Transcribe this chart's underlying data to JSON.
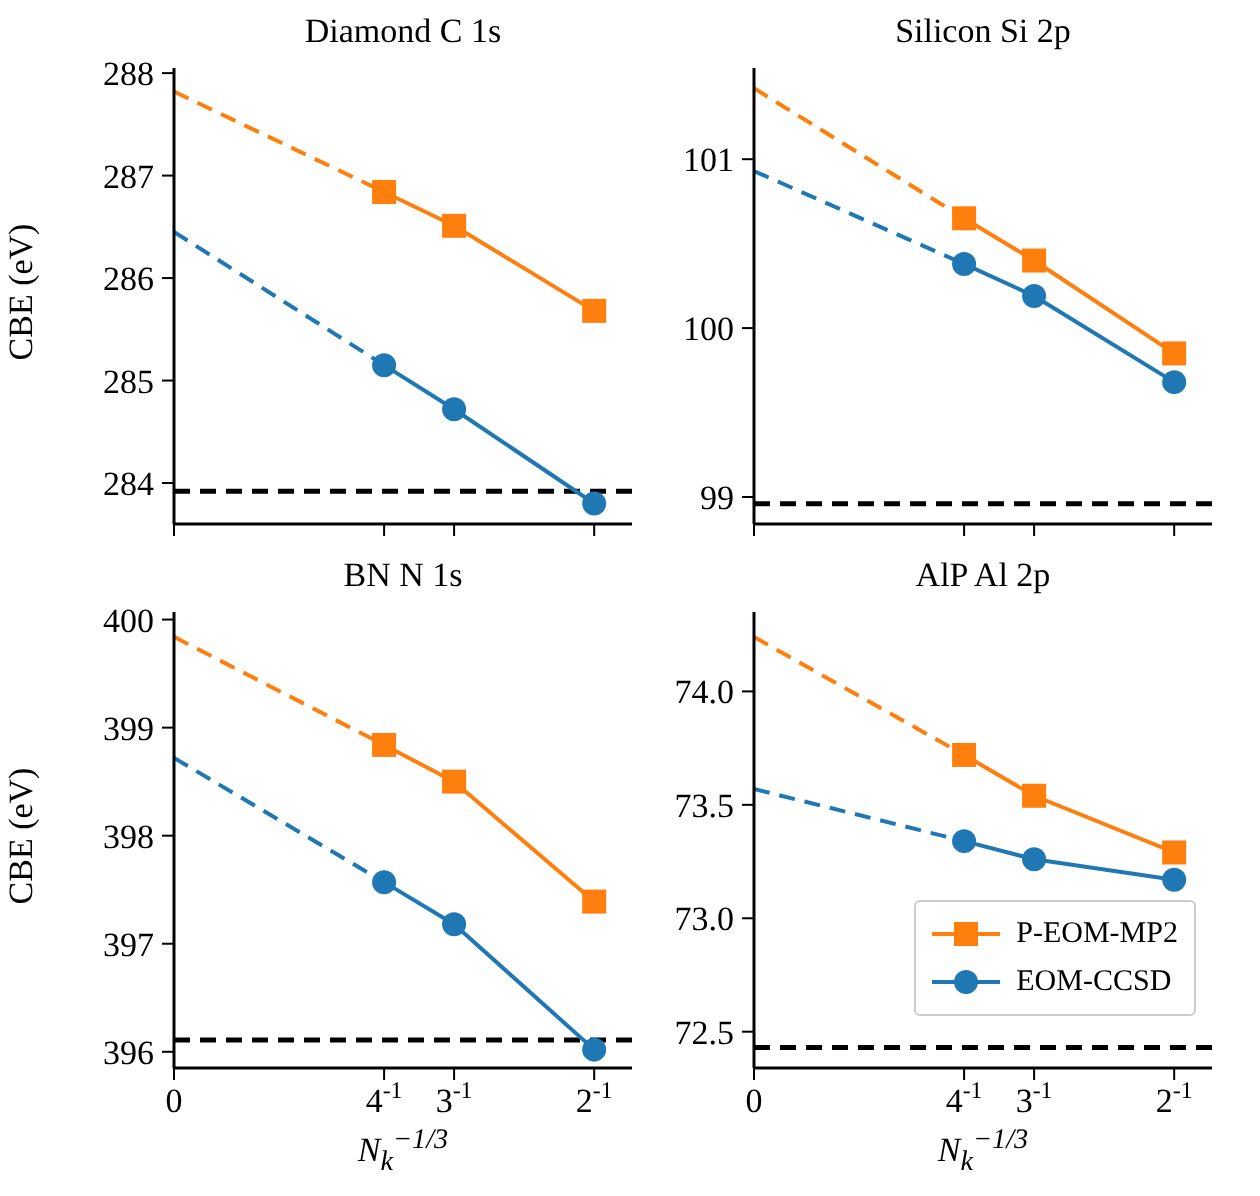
{
  "chart_data": [
    {
      "type": "line",
      "title": "Diamond C 1s",
      "ylabel": "CBE (eV)",
      "xlim": [
        0,
        0.545
      ],
      "xticks": [
        {
          "value": 0,
          "label": null
        },
        {
          "value": 0.25,
          "label": null
        },
        {
          "value": 0.3333,
          "label": null
        },
        {
          "value": 0.5,
          "label": null
        }
      ],
      "ylim": [
        283.6,
        288.05
      ],
      "yticks": [
        284,
        285,
        286,
        287,
        288
      ],
      "tick_labels": "y",
      "grid": false,
      "legend": false,
      "series": [
        {
          "color": "#ff7f0e",
          "x": [
            0,
            0.25
          ],
          "values": [
            287.82,
            286.84
          ],
          "line_style": "dashed"
        },
        {
          "color": "#1f77b4",
          "x": [
            0,
            0.25
          ],
          "values": [
            286.45,
            285.15
          ],
          "line_style": "dashed"
        },
        {
          "color": "#ff7f0e",
          "x": [
            0.25,
            0.3333,
            0.5
          ],
          "values": [
            286.84,
            286.51,
            285.68
          ],
          "marker": "square",
          "line_style": "solid"
        },
        {
          "color": "#1f77b4",
          "x": [
            0.25,
            0.3333,
            0.5
          ],
          "values": [
            285.15,
            284.72,
            283.8
          ],
          "marker": "circle",
          "line_style": "solid"
        }
      ],
      "ref_lines": [
        {
          "axis": "y",
          "value": 283.92,
          "color": "#000000",
          "line_style": "dashed"
        }
      ]
    },
    {
      "type": "line",
      "title": "Silicon Si 2p",
      "xlim": [
        0,
        0.545
      ],
      "xticks": [
        {
          "value": 0,
          "label": null
        },
        {
          "value": 0.25,
          "label": null
        },
        {
          "value": 0.3333,
          "label": null
        },
        {
          "value": 0.5,
          "label": null
        }
      ],
      "ylim": [
        98.84,
        101.54
      ],
      "yticks": [
        99,
        100,
        101
      ],
      "tick_labels": "y",
      "grid": false,
      "legend": false,
      "series": [
        {
          "color": "#ff7f0e",
          "x": [
            0,
            0.25
          ],
          "values": [
            101.42,
            100.65
          ],
          "line_style": "dashed"
        },
        {
          "color": "#1f77b4",
          "x": [
            0,
            0.25
          ],
          "values": [
            100.93,
            100.38
          ],
          "line_style": "dashed"
        },
        {
          "color": "#ff7f0e",
          "x": [
            0.25,
            0.3333,
            0.5
          ],
          "values": [
            100.65,
            100.4,
            99.85
          ],
          "marker": "square",
          "line_style": "solid"
        },
        {
          "color": "#1f77b4",
          "x": [
            0.25,
            0.3333,
            0.5
          ],
          "values": [
            100.38,
            100.19,
            99.68
          ],
          "marker": "circle",
          "line_style": "solid"
        }
      ],
      "ref_lines": [
        {
          "axis": "y",
          "value": 98.96,
          "color": "#000000",
          "line_style": "dashed"
        }
      ]
    },
    {
      "type": "line",
      "title": "BN N 1s",
      "ylabel": "CBE (eV)",
      "xlabel": "N$_{k}$$^{−1/3}$",
      "xlim": [
        0,
        0.545
      ],
      "xticks": [
        0,
        {
          "value": 0.25,
          "label": "4$^{-1}$"
        },
        {
          "value": 0.3333,
          "label": "3$^{-1}$"
        },
        {
          "value": 0.5,
          "label": "2$^{-1}$"
        }
      ],
      "ylim": [
        395.85,
        400.07
      ],
      "yticks": [
        396,
        397,
        398,
        399,
        400
      ],
      "grid": false,
      "legend": false,
      "series": [
        {
          "color": "#ff7f0e",
          "x": [
            0,
            0.25
          ],
          "values": [
            399.84,
            398.84
          ],
          "line_style": "dashed"
        },
        {
          "color": "#1f77b4",
          "x": [
            0,
            0.25
          ],
          "values": [
            398.72,
            397.57
          ],
          "line_style": "dashed"
        },
        {
          "color": "#ff7f0e",
          "x": [
            0.25,
            0.3333,
            0.5
          ],
          "values": [
            398.84,
            398.5,
            397.39
          ],
          "marker": "square",
          "line_style": "solid"
        },
        {
          "color": "#1f77b4",
          "x": [
            0.25,
            0.3333,
            0.5
          ],
          "values": [
            397.57,
            397.18,
            396.02
          ],
          "marker": "circle",
          "line_style": "solid"
        }
      ],
      "ref_lines": [
        {
          "axis": "y",
          "value": 396.11,
          "color": "#000000",
          "line_style": "dashed"
        }
      ]
    },
    {
      "type": "line",
      "title": "AlP Al 2p",
      "xlabel": "N$_{k}$$^{−1/3}$",
      "xlim": [
        0,
        0.545
      ],
      "xticks": [
        0,
        {
          "value": 0.25,
          "label": "4$^{-1}$"
        },
        {
          "value": 0.3333,
          "label": "3$^{-1}$"
        },
        {
          "value": 0.5,
          "label": "2$^{-1}$"
        }
      ],
      "ylim": [
        72.34,
        74.35
      ],
      "yticks": [
        {
          "value": 72.5,
          "label": "72.5"
        },
        {
          "value": 73,
          "label": "73.0"
        },
        {
          "value": 73.5,
          "label": "73.5"
        },
        {
          "value": 74,
          "label": "74.0"
        }
      ],
      "grid": false,
      "legend": "bottom right",
      "series": [
        {
          "color": "#ff7f0e",
          "x": [
            0,
            0.25
          ],
          "values": [
            74.24,
            73.72
          ],
          "line_style": "dashed"
        },
        {
          "color": "#1f77b4",
          "x": [
            0,
            0.25
          ],
          "values": [
            73.57,
            73.34
          ],
          "line_style": "dashed"
        },
        {
          "name": "P-EOM-MP2",
          "color": "#ff7f0e",
          "x": [
            0.25,
            0.3333,
            0.5
          ],
          "values": [
            73.72,
            73.54,
            73.29
          ],
          "marker": "square",
          "line_style": "solid"
        },
        {
          "name": "EOM-CCSD",
          "color": "#1f77b4",
          "x": [
            0.25,
            0.3333,
            0.5
          ],
          "values": [
            73.34,
            73.26,
            73.17
          ],
          "marker": "circle",
          "line_style": "solid"
        }
      ],
      "ref_lines": [
        {
          "axis": "y",
          "value": 72.43,
          "color": "#000000",
          "line_style": "dashed"
        }
      ]
    }
  ]
}
